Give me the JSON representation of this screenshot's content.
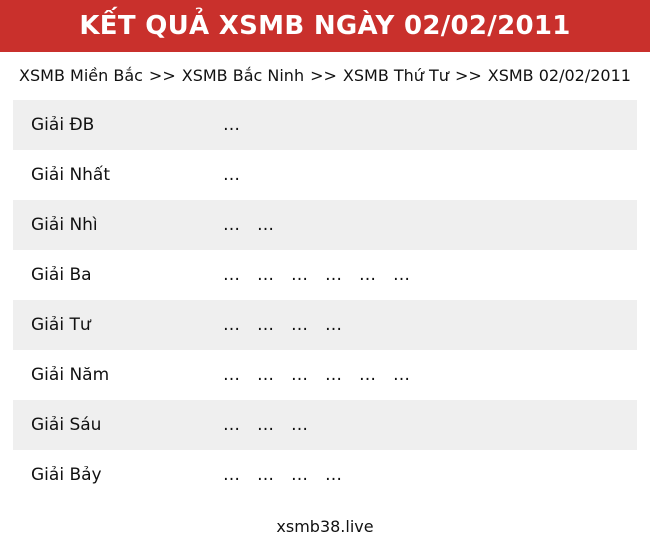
{
  "header": {
    "title": "KẾT QUẢ XSMB NGÀY 02/02/2011"
  },
  "breadcrumb": {
    "separator": ">>",
    "items": [
      "XSMB Miền Bắc",
      "XSMB Bắc Ninh",
      "XSMB Thứ Tư",
      "XSMB 02/02/2011"
    ]
  },
  "results": {
    "rows": [
      {
        "label": "Giải ĐB",
        "values": [
          "…"
        ]
      },
      {
        "label": "Giải Nhất",
        "values": [
          "…"
        ]
      },
      {
        "label": "Giải Nhì",
        "values": [
          "…",
          "…"
        ]
      },
      {
        "label": "Giải Ba",
        "values": [
          "…",
          "…",
          "…",
          "…",
          "…",
          "…"
        ]
      },
      {
        "label": "Giải Tư",
        "values": [
          "…",
          "…",
          "…",
          "…"
        ]
      },
      {
        "label": "Giải Năm",
        "values": [
          "…",
          "…",
          "…",
          "…",
          "…",
          "…"
        ]
      },
      {
        "label": "Giải Sáu",
        "values": [
          "…",
          "…",
          "…"
        ]
      },
      {
        "label": "Giải Bảy",
        "values": [
          "…",
          "…",
          "…",
          "…"
        ]
      }
    ]
  },
  "footer": {
    "site": "xsmb38.live"
  },
  "colors": {
    "header_bg": "#c9302c",
    "header_text": "#ffffff",
    "row_alt_bg": "#efefef",
    "row_bg": "#ffffff",
    "text": "#111111"
  }
}
